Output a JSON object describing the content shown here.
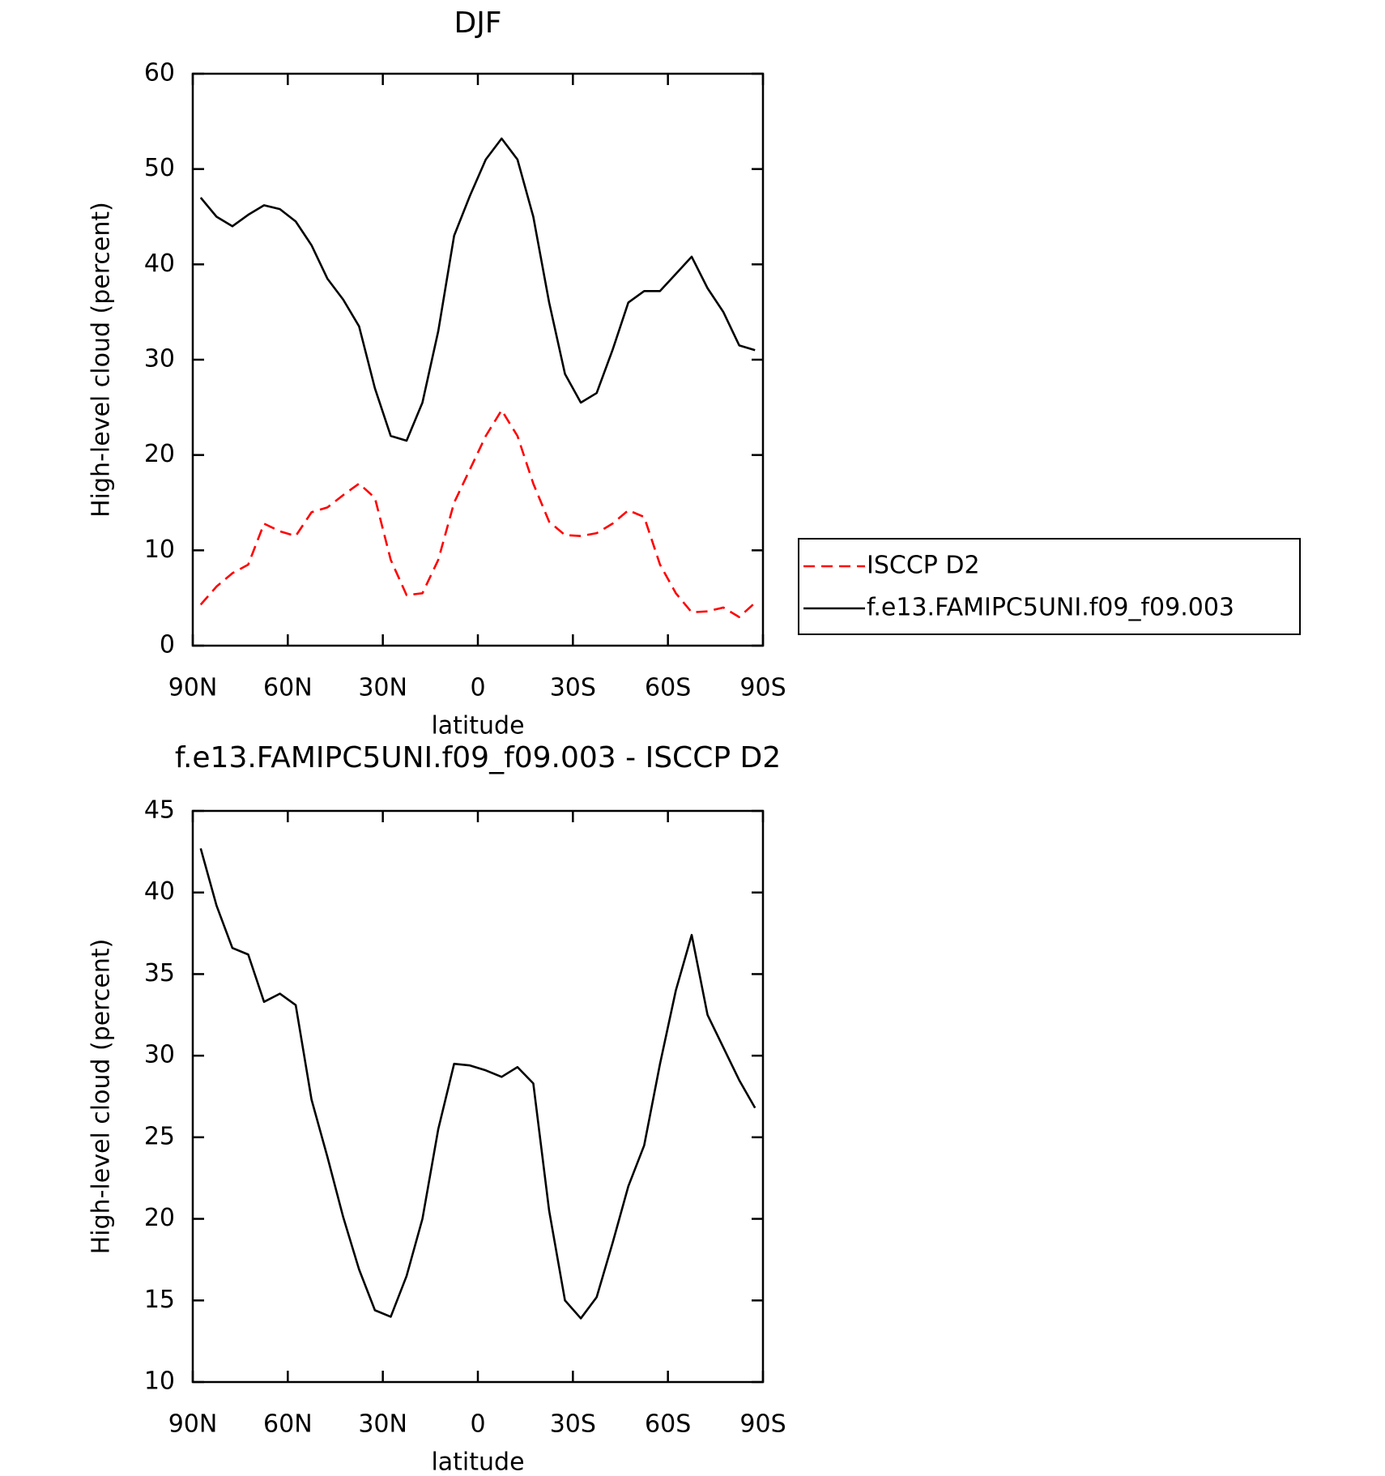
{
  "chart_data": [
    {
      "type": "line",
      "title": "DJF",
      "xlabel": "latitude",
      "ylabel": "High-level cloud (percent)",
      "x": [
        87.5,
        82.5,
        77.5,
        72.5,
        67.5,
        62.5,
        57.5,
        52.5,
        47.5,
        42.5,
        37.5,
        32.5,
        27.5,
        22.5,
        17.5,
        12.5,
        7.5,
        2.5,
        -2.5,
        -7.5,
        -12.5,
        -17.5,
        -22.5,
        -27.5,
        -32.5,
        -37.5,
        -42.5,
        -47.5,
        -52.5,
        -57.5,
        -62.5,
        -67.5,
        -72.5,
        -77.5,
        -82.5,
        -87.5
      ],
      "series": [
        {
          "name": "ISCCP D2",
          "color": "#ff0000",
          "style": "dashed",
          "values": [
            4.3,
            6.2,
            7.6,
            8.5,
            12.8,
            12,
            11.5,
            14,
            14.5,
            15.8,
            17,
            15.5,
            9,
            5.3,
            5.5,
            9,
            15,
            18.5,
            22,
            24.7,
            22,
            17,
            13,
            11.6,
            11.5,
            11.8,
            12.8,
            14.2,
            13.5,
            8.5,
            5.5,
            3.5,
            3.6,
            4,
            3,
            4.5
          ]
        },
        {
          "name": "f.e13.FAMIPC5UNI.f09_f09.003",
          "color": "#000000",
          "style": "solid",
          "values": [
            47,
            45,
            44,
            45.2,
            46.2,
            45.8,
            44.5,
            42,
            38.5,
            36.3,
            33.5,
            27,
            22,
            21.5,
            25.5,
            33,
            43,
            47.2,
            51,
            53.2,
            51,
            45,
            36,
            28.5,
            25.5,
            26.5,
            31,
            36,
            37.2,
            37.2,
            39,
            40.8,
            37.5,
            35,
            31.5,
            31
          ]
        }
      ],
      "xlim": [
        90,
        -90
      ],
      "xticks": [
        {
          "value": 90,
          "label": "90N"
        },
        {
          "value": 60,
          "label": "60N"
        },
        {
          "value": 30,
          "label": "30N"
        },
        0,
        {
          "value": -30,
          "label": "30S"
        },
        {
          "value": -60,
          "label": "60S"
        },
        {
          "value": -90,
          "label": "90S"
        }
      ],
      "ylim": [
        0,
        60
      ],
      "yticks": [
        0,
        10,
        20,
        30,
        40,
        50,
        60
      ],
      "grid": false,
      "legend": "right"
    },
    {
      "type": "line",
      "title": "f.e13.FAMIPC5UNI.f09_f09.003 - ISCCP D2",
      "xlabel": "latitude",
      "ylabel": "High-level cloud (percent)",
      "x": [
        87.5,
        82.5,
        77.5,
        72.5,
        67.5,
        62.5,
        57.5,
        52.5,
        47.5,
        42.5,
        37.5,
        32.5,
        27.5,
        22.5,
        17.5,
        12.5,
        7.5,
        2.5,
        -2.5,
        -7.5,
        -12.5,
        -17.5,
        -22.5,
        -27.5,
        -32.5,
        -37.5,
        -42.5,
        -47.5,
        -52.5,
        -57.5,
        -62.5,
        -67.5,
        -72.5,
        -77.5,
        -82.5,
        -87.5
      ],
      "series": [
        {
          "color": "#000000",
          "style": "solid",
          "values": [
            42.7,
            39.2,
            36.6,
            36.2,
            33.3,
            33.8,
            33.1,
            27.3,
            23.8,
            20.1,
            16.9,
            14.4,
            14,
            16.5,
            20,
            25.5,
            29.5,
            29.4,
            29.1,
            28.7,
            29.3,
            28.3,
            20.5,
            15,
            13.9,
            15.2,
            18.5,
            22,
            24.5,
            29.5,
            34,
            37.4,
            32.5,
            30.5,
            28.5,
            26.8
          ]
        }
      ],
      "xlim": [
        90,
        -90
      ],
      "xticks": [
        {
          "value": 90,
          "label": "90N"
        },
        {
          "value": 60,
          "label": "60N"
        },
        {
          "value": 30,
          "label": "30N"
        },
        0,
        {
          "value": -30,
          "label": "30S"
        },
        {
          "value": -60,
          "label": "60S"
        },
        {
          "value": -90,
          "label": "90S"
        }
      ],
      "ylim": [
        10,
        45
      ],
      "yticks": [
        10,
        15,
        20,
        25,
        30,
        35,
        40,
        45
      ],
      "grid": false
    }
  ]
}
